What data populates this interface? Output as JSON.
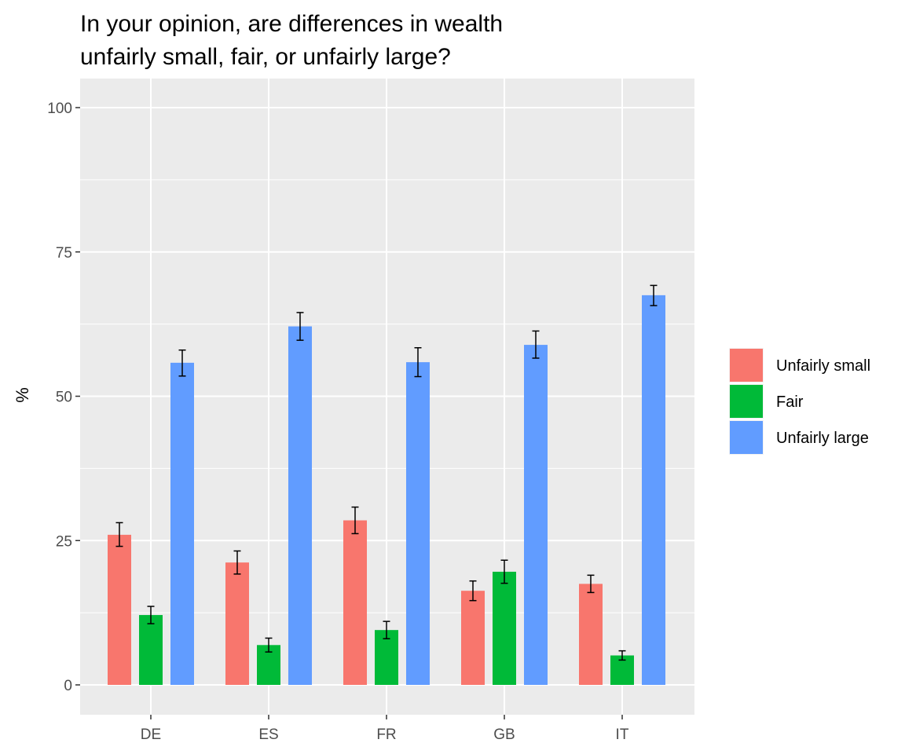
{
  "chart_data": {
    "type": "bar",
    "title": [
      "In your opinion, are differences in wealth",
      "unfairly small, fair, or unfairly large?"
    ],
    "xlabel": "",
    "ylabel": "%",
    "categories": [
      "DE",
      "ES",
      "FR",
      "GB",
      "IT"
    ],
    "ylim": [
      -5,
      105
    ],
    "yticks": [
      0,
      25,
      50,
      75,
      100
    ],
    "grid": true,
    "legend_position": "right",
    "series": [
      {
        "name": "Unfairly small",
        "color": "#F8766D",
        "values": [
          26.0,
          21.2,
          28.5,
          16.3,
          17.5
        ],
        "error_low": [
          24.0,
          19.2,
          26.2,
          14.6,
          16.0
        ],
        "error_high": [
          28.1,
          23.2,
          30.8,
          18.0,
          19.0
        ]
      },
      {
        "name": "Fair",
        "color": "#00BA38",
        "values": [
          12.1,
          6.9,
          9.5,
          19.6,
          5.1
        ],
        "error_low": [
          10.6,
          5.7,
          8.0,
          17.6,
          4.3
        ],
        "error_high": [
          13.6,
          8.1,
          11.0,
          21.6,
          5.9
        ]
      },
      {
        "name": "Unfairly large",
        "color": "#619CFF",
        "values": [
          55.8,
          62.1,
          55.9,
          58.9,
          67.5
        ],
        "error_low": [
          53.5,
          59.7,
          53.4,
          56.6,
          65.7
        ],
        "error_high": [
          58.0,
          64.5,
          58.4,
          61.3,
          69.2
        ]
      }
    ]
  }
}
